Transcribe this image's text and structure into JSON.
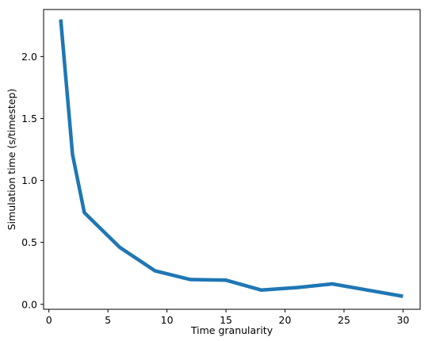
{
  "chart_data": {
    "type": "line",
    "title": "",
    "xlabel": "Time granularity",
    "ylabel": "Simulation time  (s/timestep)",
    "xlim": [
      -0.45,
      31.45
    ],
    "ylim": [
      -0.04,
      2.38
    ],
    "xticks": [
      0,
      5,
      10,
      15,
      20,
      25,
      30
    ],
    "xtick_labels": [
      "0",
      "5",
      "10",
      "15",
      "20",
      "25",
      "30"
    ],
    "yticks": [
      0.0,
      0.5,
      1.0,
      1.5,
      2.0
    ],
    "ytick_labels": [
      "0.0",
      "0.5",
      "1.0",
      "1.5",
      "2.0"
    ],
    "grid": false,
    "legend": "none",
    "series": [
      {
        "color": "#1f77b4",
        "x": [
          1,
          2,
          3,
          6,
          9,
          12,
          15,
          18,
          21,
          24,
          27,
          30
        ],
        "y": [
          2.3,
          1.21,
          0.74,
          0.46,
          0.27,
          0.2,
          0.195,
          0.115,
          0.135,
          0.165,
          0.115,
          0.065
        ]
      }
    ]
  }
}
